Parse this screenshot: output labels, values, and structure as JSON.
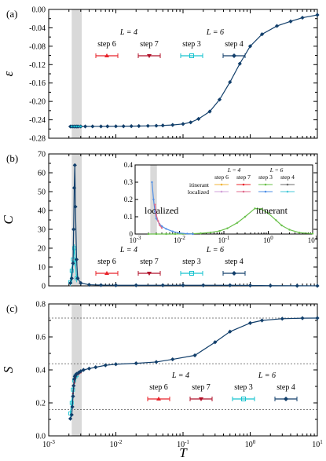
{
  "figure": {
    "xlabel": "T",
    "colors": {
      "L4_step6": "#e8232a",
      "L4_step7": "#b0112a",
      "L6_step3": "#17c3cf",
      "L6_step4": "#123f6b",
      "shade": "#d9d9d9",
      "itin_L4_step6": "#f0b438",
      "itin_L4_step7": "#e8232a",
      "itin_L6_step3": "#69c04a",
      "itin_L6_step4": "#6b6b6b",
      "loc_L4_step6": "#d2a0d8",
      "loc_L4_step7": "#e16b8c",
      "loc_L6_step3": "#4f8fe6",
      "loc_L6_step4": "#46c8d8"
    }
  },
  "legend": {
    "group1": "L = 4",
    "group2": "L = 6",
    "items": [
      "step 6",
      "step 7",
      "step 3",
      "step 4"
    ]
  },
  "inset_legend": {
    "group1": "L = 4",
    "group2": "L = 6",
    "items": [
      "step 6",
      "step 7",
      "step 3",
      "step 4"
    ],
    "row1": "itinerant",
    "row2": "localized",
    "label_localized": "localized",
    "label_itinerant": "itinerant"
  },
  "chart_data": [
    {
      "type": "line",
      "panel_label": "(a)",
      "ylabel": "ε",
      "xscale": "log",
      "xlim": [
        0.001,
        10
      ],
      "ylim": [
        -0.28,
        0.0
      ],
      "yticks": [
        "-0.28",
        "-0.24",
        "-0.20",
        "-0.16",
        "-0.12",
        "-0.08",
        "-0.04",
        "0.00"
      ],
      "xticks": [
        "10-3",
        "10-2",
        "10-1",
        "100",
        "101"
      ],
      "shaded_x": [
        0.0022,
        0.0031
      ],
      "series": [
        {
          "name": "step 4",
          "group": "L = 6",
          "x": [
            0.0021,
            0.0022,
            0.0023,
            0.0024,
            0.0025,
            0.0026,
            0.0027,
            0.0028,
            0.003,
            0.0035,
            0.0045,
            0.006,
            0.0075,
            0.01,
            0.013,
            0.017,
            0.022,
            0.03,
            0.04,
            0.05,
            0.07,
            0.1,
            0.13,
            0.17,
            0.25,
            0.35,
            0.5,
            0.7,
            1.0,
            1.5,
            2.5,
            4,
            6,
            10
          ],
          "y": [
            -0.2545,
            -0.2545,
            -0.2545,
            -0.2545,
            -0.2545,
            -0.2545,
            -0.2545,
            -0.2545,
            -0.2544,
            -0.2544,
            -0.2543,
            -0.2543,
            -0.2542,
            -0.2541,
            -0.254,
            -0.2538,
            -0.2536,
            -0.2532,
            -0.2528,
            -0.2523,
            -0.2512,
            -0.249,
            -0.2455,
            -0.238,
            -0.222,
            -0.196,
            -0.158,
            -0.118,
            -0.08,
            -0.054,
            -0.036,
            -0.026,
            -0.018,
            -0.012
          ]
        },
        {
          "name": "step 3",
          "group": "L = 6",
          "x": [
            0.0022,
            0.0024,
            0.0026,
            0.0028,
            0.003
          ],
          "y": [
            -0.2544,
            -0.2544,
            -0.2544,
            -0.2544,
            -0.2544
          ]
        }
      ]
    },
    {
      "type": "line",
      "panel_label": "(b)",
      "ylabel": "C",
      "xscale": "log",
      "xlim": [
        0.001,
        10
      ],
      "ylim": [
        0,
        70
      ],
      "yticks": [
        "0",
        "10",
        "20",
        "30",
        "40",
        "50",
        "60",
        "70"
      ],
      "xticks": [
        "10-3",
        "10-2",
        "10-1",
        "100",
        "101"
      ],
      "shaded_x": [
        0.0022,
        0.0031
      ],
      "peak": {
        "x": 0.00245,
        "y": 64
      },
      "series": [
        {
          "name": "step 4",
          "group": "L = 6",
          "x": [
            0.0021,
            0.0022,
            0.0023,
            0.00235,
            0.0024,
            0.00245,
            0.0025,
            0.0026,
            0.0027,
            0.003,
            0.004,
            0.006,
            0.01,
            0.02,
            0.05,
            0.1,
            0.2,
            0.5,
            1,
            2,
            5,
            10
          ],
          "y": [
            1.5,
            4,
            12,
            30,
            52,
            64,
            42,
            14,
            4,
            1.5,
            0.6,
            0.4,
            0.3,
            0.3,
            0.3,
            0.3,
            0.3,
            0.3,
            0.2,
            0.1,
            0.05,
            0.02
          ]
        },
        {
          "name": "step 3",
          "group": "L = 6",
          "x": [
            0.0021,
            0.0022,
            0.0023,
            0.0024,
            0.0025,
            0.0026
          ],
          "y": [
            2,
            8,
            14,
            20,
            12,
            4
          ]
        }
      ],
      "inset": {
        "xscale": "log",
        "xlim": [
          0.001,
          10
        ],
        "ylim": [
          0,
          0.4
        ],
        "yticks": [
          "0",
          "0.1",
          "0.2",
          "0.3",
          "0.4"
        ],
        "xticks": [
          "10-3",
          "10-2",
          "10-1",
          "100",
          "101"
        ],
        "series": [
          {
            "name": "itinerant step 3",
            "group": "L = 6",
            "x": [
              0.002,
              0.003,
              0.005,
              0.008,
              0.012,
              0.02,
              0.03,
              0.05,
              0.08,
              0.12,
              0.2,
              0.3,
              0.5,
              0.7,
              1.0,
              1.5,
              2.0,
              3.0,
              5.0,
              10.0
            ],
            "y": [
              0.0,
              0.0,
              0.0,
              0.0,
              0.001,
              0.002,
              0.004,
              0.009,
              0.018,
              0.033,
              0.065,
              0.1,
              0.148,
              0.145,
              0.12,
              0.08,
              0.05,
              0.025,
              0.008,
              0.002
            ]
          },
          {
            "name": "localized step 4",
            "group": "L = 6",
            "x": [
              0.0024,
              0.0026,
              0.0028,
              0.003,
              0.0035,
              0.004,
              0.005,
              0.007,
              0.01,
              0.015,
              0.02
            ],
            "y": [
              0.3,
              0.2,
              0.13,
              0.09,
              0.06,
              0.045,
              0.03,
              0.015,
              0.006,
              0.002,
              0.0
            ]
          },
          {
            "name": "localized step 7",
            "group": "L = 4",
            "x": [
              0.0028,
              0.003,
              0.0033,
              0.0036,
              0.004
            ],
            "y": [
              0.17,
              0.11,
              0.075,
              0.05,
              0.035
            ]
          }
        ]
      }
    },
    {
      "type": "line",
      "panel_label": "(c)",
      "ylabel": "S",
      "xlabel": "T",
      "xscale": "log",
      "xlim": [
        0.001,
        10
      ],
      "ylim": [
        -0.2,
        0.8
      ],
      "yticks": [
        "0.0",
        "0.2",
        "0.4",
        "0.6",
        "0.8"
      ],
      "xticks": [
        "10-3",
        "10-2",
        "10-1",
        "100",
        "101"
      ],
      "shaded_x": [
        0.0022,
        0.0031
      ],
      "reference_lines_y": [
        0.0,
        0.347,
        0.693
      ],
      "series": [
        {
          "name": "step 4",
          "group": "L = 6",
          "x": [
            0.0021,
            0.0022,
            0.00225,
            0.0023,
            0.00235,
            0.0024,
            0.00245,
            0.0025,
            0.0026,
            0.0028,
            0.003,
            0.0033,
            0.004,
            0.005,
            0.007,
            0.01,
            0.02,
            0.04,
            0.07,
            0.15,
            0.3,
            0.5,
            1.0,
            1.5,
            3,
            6,
            10
          ],
          "y": [
            -0.07,
            -0.04,
            0.02,
            0.1,
            0.18,
            0.23,
            0.25,
            0.26,
            0.27,
            0.28,
            0.29,
            0.3,
            0.31,
            0.32,
            0.335,
            0.343,
            0.35,
            0.36,
            0.38,
            0.41,
            0.51,
            0.59,
            0.655,
            0.675,
            0.688,
            0.692,
            0.693
          ]
        },
        {
          "name": "step 3",
          "group": "L = 6",
          "x": [
            0.0021,
            0.0022,
            0.0023,
            0.0024,
            0.0025,
            0.0026
          ],
          "y": [
            -0.03,
            0.05,
            0.15,
            0.22,
            0.25,
            0.26
          ]
        },
        {
          "name": "step 7",
          "group": "L = 4",
          "x": [
            0.0023,
            0.0024,
            0.0025,
            0.0026,
            0.0028,
            0.003
          ],
          "y": [
            0.12,
            0.2,
            0.24,
            0.26,
            0.27,
            0.28
          ]
        }
      ]
    }
  ]
}
